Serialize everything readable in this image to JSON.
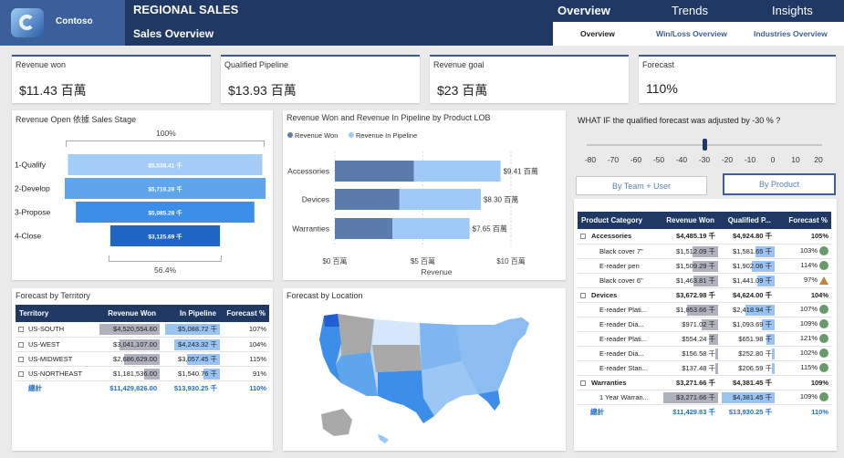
{
  "brand": {
    "name": "Contoso"
  },
  "header": {
    "title": "REGIONAL SALES",
    "subtitle": "Sales Overview",
    "tabs": [
      "Overview",
      "Trends",
      "Insights"
    ],
    "subtabs": [
      "Overview",
      "Win/Loss Overview",
      "Industries Overview"
    ]
  },
  "kpis": [
    {
      "label": "Revenue won",
      "value": "$11.43 百萬"
    },
    {
      "label": "Qualified Pipeline",
      "value": "$13.93 百萬"
    },
    {
      "label": "Revenue goal",
      "value": "$23 百萬"
    },
    {
      "label": "Forecast",
      "value": "110%"
    }
  ],
  "funnel": {
    "title": "Revenue Open 依據 Sales Stage",
    "top_label": "100%",
    "bottom_label": "56.4%",
    "stages": [
      {
        "name": "1-Qualify",
        "value": "$5,538.41 千",
        "amount": 5538.41
      },
      {
        "name": "2-Develop",
        "value": "$5,719.29 千",
        "amount": 5719.29
      },
      {
        "name": "3-Propose",
        "value": "$5,085.28 千",
        "amount": 5085.28
      },
      {
        "name": "4-Close",
        "value": "$3,125.69 千",
        "amount": 3125.69
      }
    ]
  },
  "chart_data": {
    "type": "bar",
    "title": "Revenue Won and Revenue In Pipeline by Product LOB",
    "categories": [
      "Accessories",
      "Devices",
      "Warranties"
    ],
    "series": [
      {
        "name": "Revenue Won",
        "values": [
          4.49,
          3.67,
          3.27
        ],
        "color": "#5b7bad"
      },
      {
        "name": "Revenue In Pipeline",
        "values": [
          4.92,
          4.62,
          4.38
        ],
        "color": "#9fcaf7"
      }
    ],
    "total_labels": [
      "$9.41 百萬",
      "$8.30 百萬",
      "$7.65 百萬"
    ],
    "xlabel": "Revenue",
    "xticks": [
      "$0 百萬",
      "$5 百萬",
      "$10 百萬"
    ],
    "xlim": [
      0,
      10
    ],
    "legend": "top-left",
    "stacked": true
  },
  "whatif": {
    "title": "WHAT IF the qualified forecast was adjusted by  -30 % ?",
    "ticks": [
      "-80",
      "-70",
      "-60",
      "-50",
      "-40",
      "-30",
      "-20",
      "-10",
      "0",
      "10",
      "20"
    ],
    "value": -30,
    "min": -80,
    "max": 20,
    "buttons": [
      "By Team + User",
      "By Product"
    ]
  },
  "territory": {
    "title": "Forecast by Territory",
    "headers": [
      "Territory",
      "Revenue Won",
      "In Pipeline",
      "Forecast %"
    ],
    "rows": [
      {
        "name": "US-SOUTH",
        "won": "$4,520,554.60",
        "won_n": 4520554.6,
        "pipe": "$5,088.72 千",
        "pipe_n": 5088.72,
        "pct": "107%"
      },
      {
        "name": "US-WEST",
        "won": "$3,041,107.00",
        "won_n": 3041107,
        "pipe": "$4,243.32 千",
        "pipe_n": 4243.32,
        "pct": "104%"
      },
      {
        "name": "US-MIDWEST",
        "won": "$2,686,629.00",
        "won_n": 2686629,
        "pipe": "$3,057.45 千",
        "pipe_n": 3057.45,
        "pct": "115%"
      },
      {
        "name": "US-NORTHEAST",
        "won": "$1,181,536.00",
        "won_n": 1181536,
        "pipe": "$1,540.76 千",
        "pipe_n": 1540.76,
        "pct": "91%"
      }
    ],
    "total": {
      "name": "總計",
      "won": "$11,429,826.00",
      "pipe": "$13,930.25 千",
      "pct": "110%"
    }
  },
  "location": {
    "title": "Forecast by Location"
  },
  "product": {
    "headers": [
      "Product Category",
      "Revenue Won",
      "Qualified P...",
      "Forecast %"
    ],
    "rows": [
      {
        "level": 0,
        "name": "Accessories",
        "won": "$4,485.19 千",
        "pipe": "$4,924.80 千",
        "pct": "105%"
      },
      {
        "level": 1,
        "name": "Black cover 7\"",
        "won": "$1,512.09 千",
        "won_n": 1512.09,
        "pipe": "$1,581.65 千",
        "pipe_n": 1581.65,
        "pct": "103%",
        "status": "good"
      },
      {
        "level": 1,
        "name": "E-reader pen",
        "won": "$1,509.29 千",
        "won_n": 1509.29,
        "pipe": "$1,902.06 千",
        "pipe_n": 1902.06,
        "pct": "114%",
        "status": "good"
      },
      {
        "level": 1,
        "name": "Black cover 6\"",
        "won": "$1,463.81 千",
        "won_n": 1463.81,
        "pipe": "$1,441.09 千",
        "pipe_n": 1441.09,
        "pct": "97%",
        "status": "warn"
      },
      {
        "level": 0,
        "name": "Devices",
        "won": "$3,672.98 千",
        "pipe": "$4,624.00 千",
        "pct": "104%"
      },
      {
        "level": 1,
        "name": "E-reader Plati...",
        "won": "$1,853.66 千",
        "won_n": 1853.66,
        "pipe": "$2,418.94 千",
        "pipe_n": 2418.94,
        "pct": "107%",
        "status": "good"
      },
      {
        "level": 1,
        "name": "E-reader Dia...",
        "won": "$971.02 千",
        "won_n": 971.02,
        "pipe": "$1,093.69 千",
        "pipe_n": 1093.69,
        "pct": "109%",
        "status": "good"
      },
      {
        "level": 1,
        "name": "E-reader Plati...",
        "won": "$554.24 千",
        "won_n": 554.24,
        "pipe": "$651.98 千",
        "pipe_n": 651.98,
        "pct": "121%",
        "status": "good"
      },
      {
        "level": 1,
        "name": "E-reader Dia...",
        "won": "$156.58 千",
        "won_n": 156.58,
        "pipe": "$252.80 千",
        "pipe_n": 252.8,
        "pct": "102%",
        "status": "good"
      },
      {
        "level": 1,
        "name": "E-reader Stan...",
        "won": "$137.48 千",
        "won_n": 137.48,
        "pipe": "$206.59 千",
        "pipe_n": 206.59,
        "pct": "115%",
        "status": "good"
      },
      {
        "level": 0,
        "name": "Warranties",
        "won": "$3,271.66 千",
        "pipe": "$4,381.45 千",
        "pct": "109%"
      },
      {
        "level": 1,
        "name": "1 Year Warran...",
        "won": "$3,271.66 千",
        "won_n": 3271.66,
        "pipe": "$4,381.45 千",
        "pipe_n": 4381.45,
        "pct": "109%",
        "status": "good"
      }
    ],
    "total": {
      "name": "總計",
      "won": "$11,429.83 千",
      "pipe": "$13,930.25 千",
      "pct": "110%"
    }
  }
}
